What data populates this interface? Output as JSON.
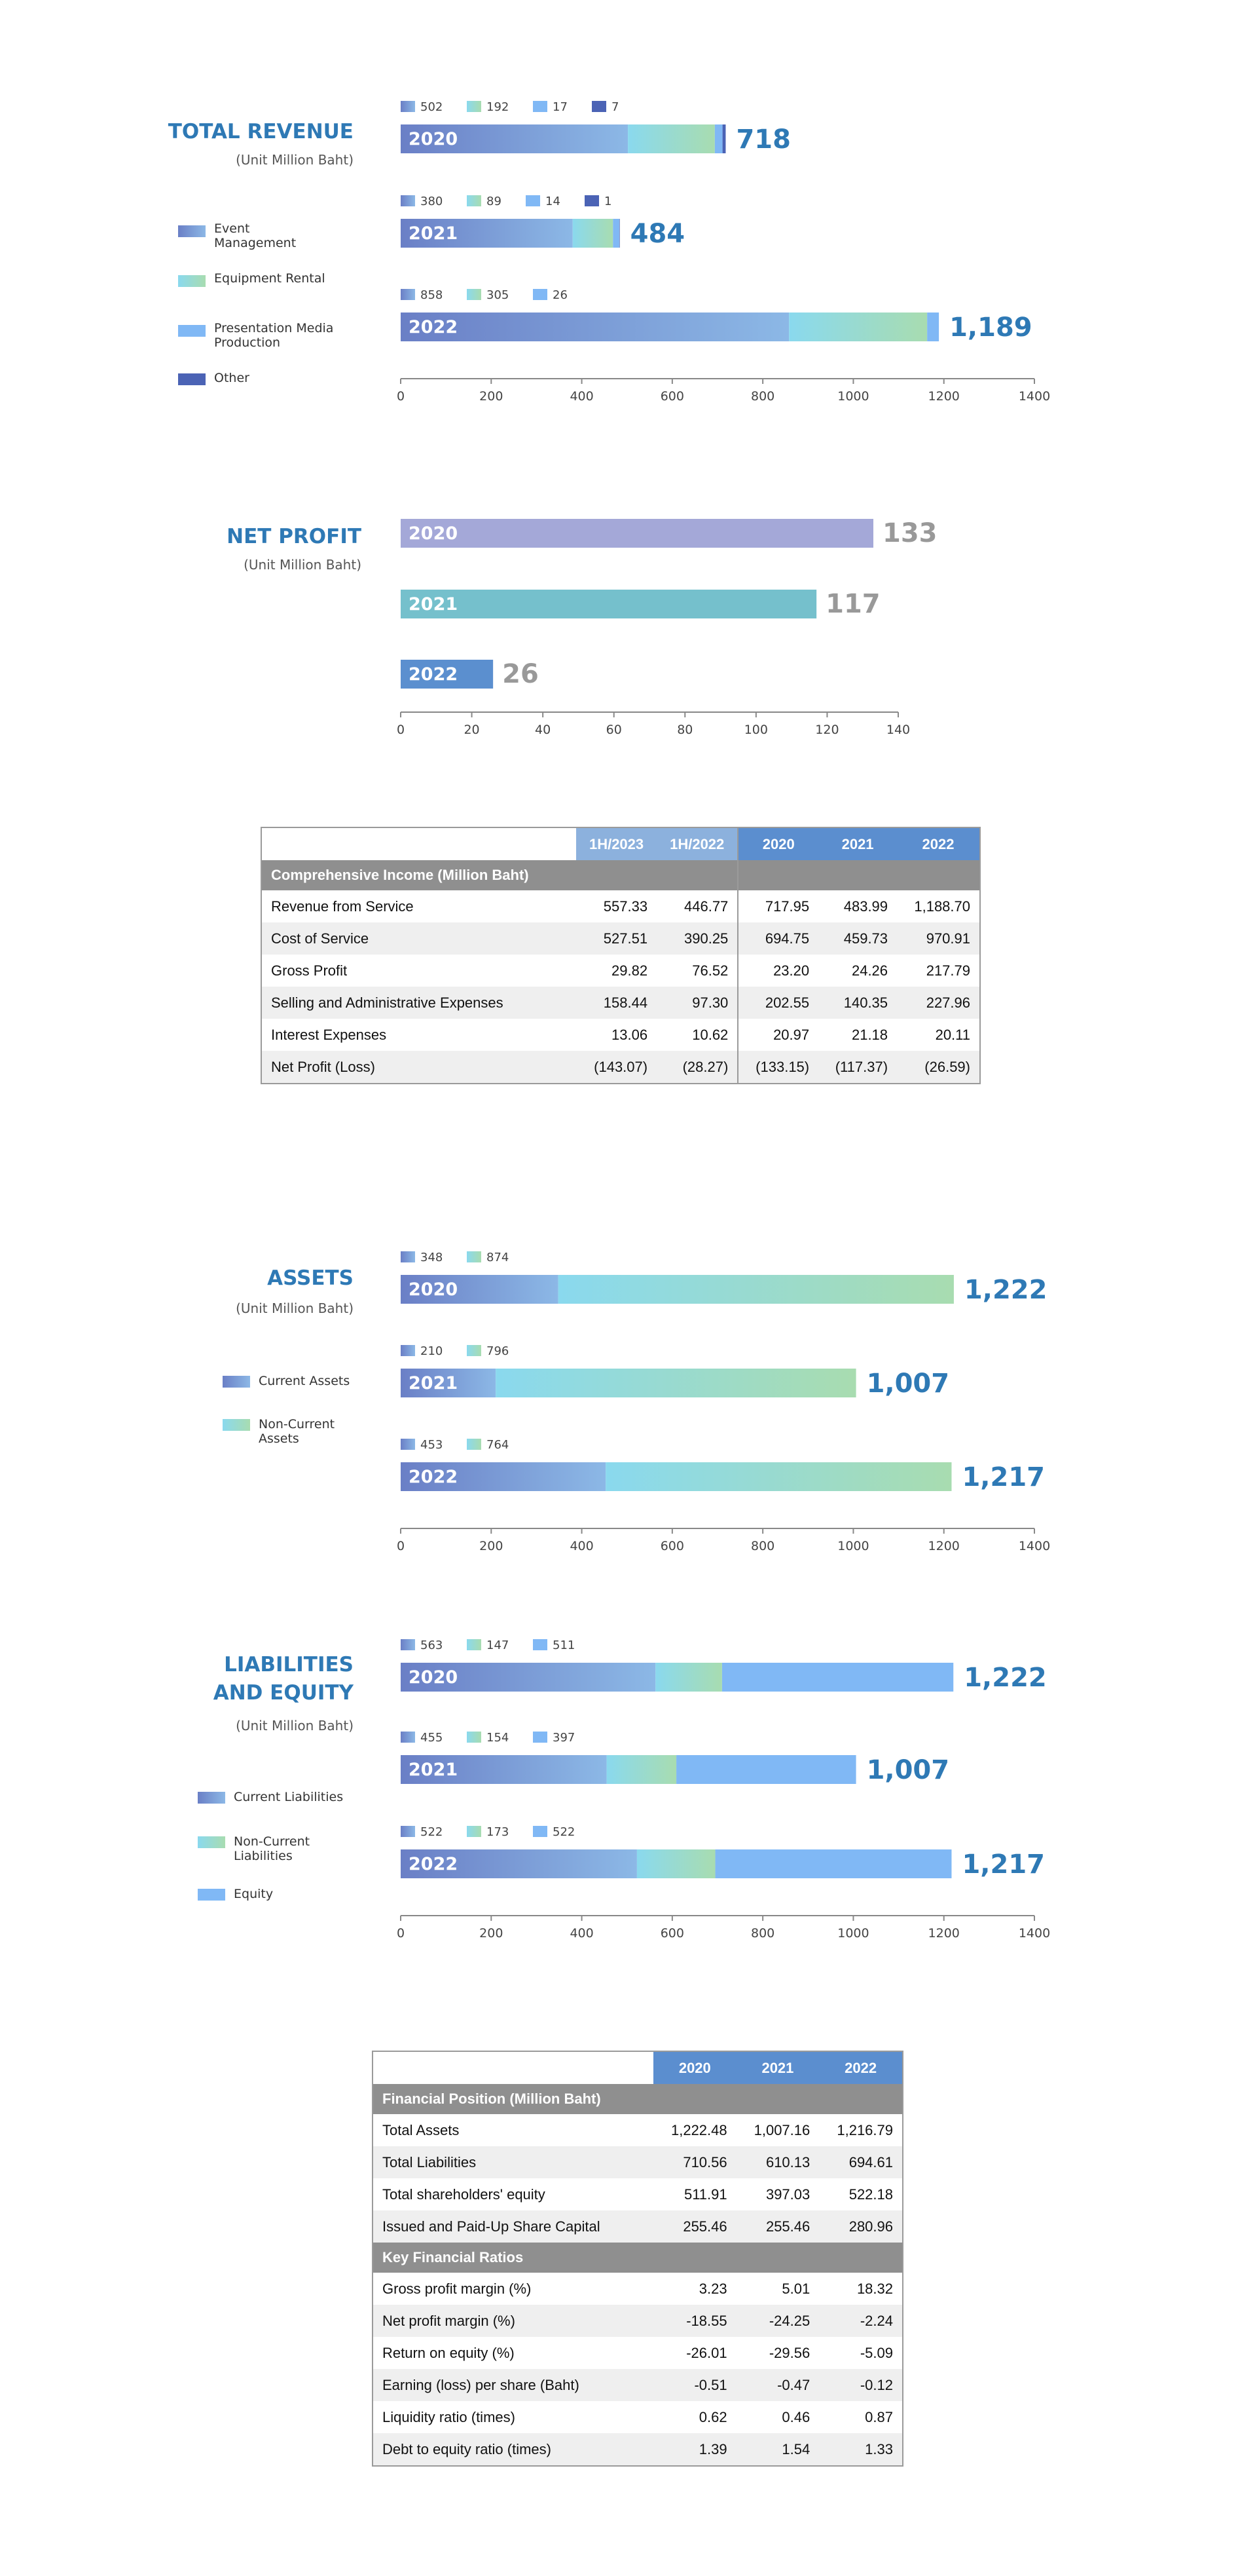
{
  "colors": {
    "title": "#2e79b5",
    "event_grad": [
      "#6a7fc6",
      "#8cb8e6"
    ],
    "equip_grad": [
      "#8ad9ee",
      "#a8dcb0"
    ],
    "presentation": "#80b8f5",
    "other": "#4b63b5",
    "axis": "#888888",
    "table_header": "#5b8ecf",
    "table_section": "#8f8f8f"
  },
  "revenue": {
    "title": "TOTAL REVENUE",
    "unit": "(Unit Million Baht)",
    "legend": [
      "Event Management",
      "Equipment Rental",
      "Presentation Media Production",
      "Other"
    ],
    "ticks": [
      "0",
      "200",
      "400",
      "600",
      "800",
      "1000",
      "1200",
      "1400"
    ]
  },
  "net_profit": {
    "title": "NET PROFIT",
    "unit": "(Unit Million Baht)",
    "ticks": [
      "0",
      "20",
      "40",
      "60",
      "80",
      "100",
      "120",
      "140"
    ]
  },
  "assets": {
    "title": "ASSETS",
    "unit": "(Unit Million Baht)",
    "legend": [
      "Current Assets",
      "Non-Current Assets"
    ],
    "ticks": [
      "0",
      "200",
      "400",
      "600",
      "800",
      "1000",
      "1200",
      "1400"
    ]
  },
  "liabilities": {
    "title_line1": "LIABILITIES",
    "title_line2": "AND EQUITY",
    "unit": "(Unit Million Baht)",
    "legend": [
      "Current Liabilities",
      "Non-Current Liabilities",
      "Equity"
    ],
    "ticks": [
      "0",
      "200",
      "400",
      "600",
      "800",
      "1000",
      "1200",
      "1400"
    ]
  },
  "chart_data": [
    {
      "type": "bar",
      "stacked": true,
      "orientation": "horizontal",
      "title": "TOTAL REVENUE",
      "subtitle": "(Unit Million Baht)",
      "categories": [
        "2020",
        "2021",
        "2022"
      ],
      "series": [
        {
          "name": "Event Management",
          "values": [
            502,
            380,
            858
          ]
        },
        {
          "name": "Equipment Rental",
          "values": [
            192,
            89,
            305
          ]
        },
        {
          "name": "Presentation Media Production",
          "values": [
            17,
            14,
            26
          ]
        },
        {
          "name": "Other",
          "values": [
            7,
            1,
            0
          ]
        }
      ],
      "totals": [
        "718",
        "484",
        "1,189"
      ],
      "xlim": [
        0,
        1400
      ],
      "legend": "left"
    },
    {
      "type": "bar",
      "orientation": "horizontal",
      "title": "NET PROFIT",
      "subtitle": "(Unit Million Baht)",
      "categories": [
        "2020",
        "2021",
        "2022"
      ],
      "values": [
        133,
        117,
        26
      ],
      "labels": [
        "133",
        "117",
        "26"
      ],
      "bar_colors": [
        "#a4a8d8",
        "#75c0cc",
        "#5b8fcf"
      ],
      "xlim": [
        0,
        140
      ]
    },
    {
      "type": "table",
      "columns": [
        "",
        "1H/2023",
        "1H/2022",
        "2020",
        "2021",
        "2022"
      ],
      "section": "Comprehensive Income (Million Baht)",
      "rows": [
        [
          "Revenue from Service",
          "557.33",
          "446.77",
          "717.95",
          "483.99",
          "1,188.70"
        ],
        [
          "Cost of Service",
          "527.51",
          "390.25",
          "694.75",
          "459.73",
          "970.91"
        ],
        [
          "Gross Profit",
          "29.82",
          "76.52",
          "23.20",
          "24.26",
          "217.79"
        ],
        [
          "Selling and Administrative Expenses",
          "158.44",
          "97.30",
          "202.55",
          "140.35",
          "227.96"
        ],
        [
          "Interest Expenses",
          "13.06",
          "10.62",
          "20.97",
          "21.18",
          "20.11"
        ],
        [
          "Net Profit (Loss)",
          "(143.07)",
          "(28.27)",
          "(133.15)",
          "(117.37)",
          "(26.59)"
        ]
      ]
    },
    {
      "type": "bar",
      "stacked": true,
      "orientation": "horizontal",
      "title": "ASSETS",
      "subtitle": "(Unit Million Baht)",
      "categories": [
        "2020",
        "2021",
        "2022"
      ],
      "series": [
        {
          "name": "Current Assets",
          "values": [
            348,
            210,
            453
          ]
        },
        {
          "name": "Non-Current Assets",
          "values": [
            874,
            796,
            764
          ]
        }
      ],
      "totals": [
        "1,222",
        "1,007",
        "1,217"
      ],
      "xlim": [
        0,
        1400
      ],
      "legend": "left"
    },
    {
      "type": "bar",
      "stacked": true,
      "orientation": "horizontal",
      "title": "LIABILITIES AND EQUITY",
      "subtitle": "(Unit Million Baht)",
      "categories": [
        "2020",
        "2021",
        "2022"
      ],
      "series": [
        {
          "name": "Current Liabilities",
          "values": [
            563,
            455,
            522
          ]
        },
        {
          "name": "Non-Current Liabilities",
          "values": [
            147,
            154,
            173
          ]
        },
        {
          "name": "Equity",
          "values": [
            511,
            397,
            522
          ]
        }
      ],
      "totals": [
        "1,222",
        "1,007",
        "1,217"
      ],
      "xlim": [
        0,
        1400
      ],
      "legend": "left"
    },
    {
      "type": "table",
      "columns": [
        "",
        "2020",
        "2021",
        "2022"
      ],
      "sections": [
        {
          "name": "Financial Position (Million Baht)",
          "rows": [
            [
              "Total Assets",
              "1,222.48",
              "1,007.16",
              "1,216.79"
            ],
            [
              "Total Liabilities",
              "710.56",
              "610.13",
              "694.61"
            ],
            [
              "Total shareholders' equity",
              "511.91",
              "397.03",
              "522.18"
            ],
            [
              "Issued and Paid-Up Share Capital",
              "255.46",
              "255.46",
              "280.96"
            ]
          ]
        },
        {
          "name": "Key Financial Ratios",
          "rows": [
            [
              "Gross profit margin (%)",
              "3.23",
              "5.01",
              "18.32"
            ],
            [
              "Net profit margin (%)",
              "-18.55",
              "-24.25",
              "-2.24"
            ],
            [
              "Return on equity (%)",
              "-26.01",
              "-29.56",
              "-5.09"
            ],
            [
              "Earning (loss) per share (Baht)",
              "-0.51",
              "-0.47",
              "-0.12"
            ],
            [
              "Liquidity ratio (times)",
              "0.62",
              "0.46",
              "0.87"
            ],
            [
              "Debt to equity ratio (times)",
              "1.39",
              "1.54",
              "1.33"
            ]
          ]
        }
      ]
    }
  ]
}
